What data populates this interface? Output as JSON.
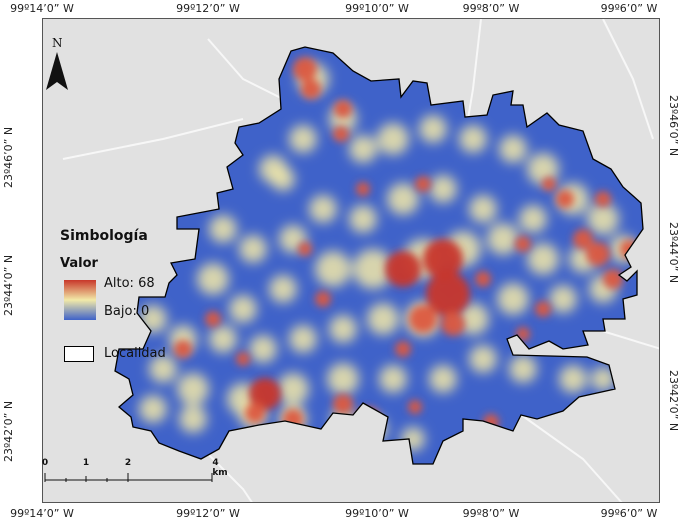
{
  "coordinates": {
    "top": [
      "99º14’0” W",
      "99º12’0” W",
      "99º10’0” W",
      "99º8’0” W",
      "99º6’0” W"
    ],
    "bottom": [
      "99º14’0” W",
      "99º12’0” W",
      "99º10’0” W",
      "99º8’0” W",
      "99º6’0” W"
    ],
    "left": [
      "23º46’0” N",
      "23º44’0” N",
      "23º42’0” N"
    ],
    "right": [
      "23º46’0” N",
      "23º44’0” N",
      "23º42’0” N"
    ]
  },
  "north_arrow": {
    "letter": "N"
  },
  "legend": {
    "title": "Simbología",
    "variable": "Valor",
    "high_label": "Alto: 68",
    "low_label": "Bajo: 0",
    "boundary_label": "Localidad",
    "colors": {
      "high": "#c8372a",
      "mid": "#f2e9a8",
      "low": "#3f62c9"
    }
  },
  "scale_bar": {
    "ticks": [
      "0",
      "1",
      "2",
      "4 km"
    ]
  }
}
